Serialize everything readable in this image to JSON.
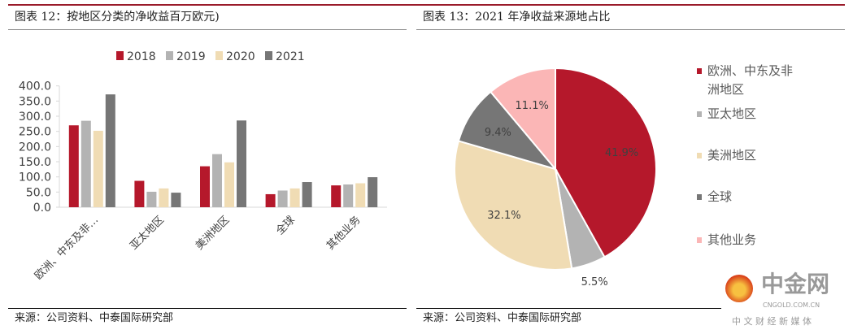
{
  "left": {
    "title": "图表 12：按地区分类的净收益百万欧元)",
    "source": "来源：公司资料、中泰国际研究部"
  },
  "right": {
    "title": "图表 13：2021 年净收益来源地占比",
    "source": "来源：公司资料、中泰国际研究部"
  },
  "watermark": {
    "name": "中金网",
    "domain": "CNGOLD.COM.CN",
    "tagline": "中 文 财 经 新 媒 体"
  },
  "chart_data": [
    {
      "type": "bar",
      "categories": [
        "欧洲、中东及非…",
        "亚太地区",
        "美洲地区",
        "全球",
        "其他业务"
      ],
      "series": [
        {
          "name": "2018",
          "color": "#b5182b",
          "values": [
            270,
            87,
            135,
            43,
            72
          ]
        },
        {
          "name": "2019",
          "color": "#b3b3b3",
          "values": [
            285,
            51,
            175,
            55,
            75
          ]
        },
        {
          "name": "2020",
          "color": "#f0dcb4",
          "values": [
            252,
            62,
            148,
            62,
            79
          ]
        },
        {
          "name": "2021",
          "color": "#767676",
          "values": [
            372,
            48,
            286,
            83,
            99
          ]
        }
      ],
      "yticks": [
        "0.0",
        "50.0",
        "100.0",
        "150.0",
        "200.0",
        "250.0",
        "300.0",
        "350.0",
        "400.0"
      ],
      "ylim": [
        0,
        400
      ],
      "legend": "top",
      "grid": false
    },
    {
      "type": "pie",
      "slices": [
        {
          "name": "欧洲、中东及非洲地区",
          "value": 41.9,
          "label": "41.9%",
          "color": "#b5182b"
        },
        {
          "name": "亚太地区",
          "value": 5.5,
          "label": "5.5%",
          "color": "#b3b3b3"
        },
        {
          "name": "美洲地区",
          "value": 32.1,
          "label": "32.1%",
          "color": "#f0dcb4"
        },
        {
          "name": "全球",
          "value": 9.4,
          "label": "9.4%",
          "color": "#767676"
        },
        {
          "name": "其他业务",
          "value": 11.1,
          "label": "11.1%",
          "color": "#fbb6b6"
        }
      ],
      "legend": "right"
    }
  ]
}
